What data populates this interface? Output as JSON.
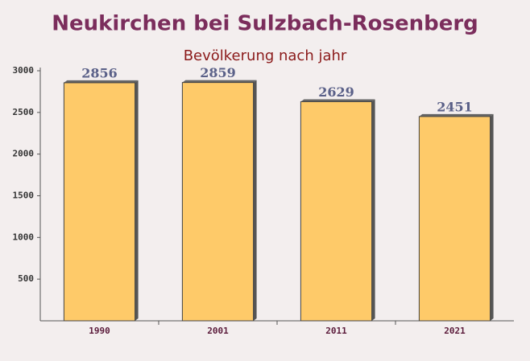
{
  "chart_data": {
    "type": "bar",
    "title": "Neukirchen bei Sulzbach-Rosenberg",
    "subtitle": "Bevölkerung nach jahr",
    "categories": [
      "1990",
      "2001",
      "2011",
      "2021"
    ],
    "values": [
      2856,
      2859,
      2629,
      2451
    ],
    "color": "#ffc55a",
    "ylim": [
      0,
      3000
    ],
    "yticks": [
      500,
      1000,
      1500,
      2000,
      2500,
      3000
    ],
    "grid": false
  }
}
